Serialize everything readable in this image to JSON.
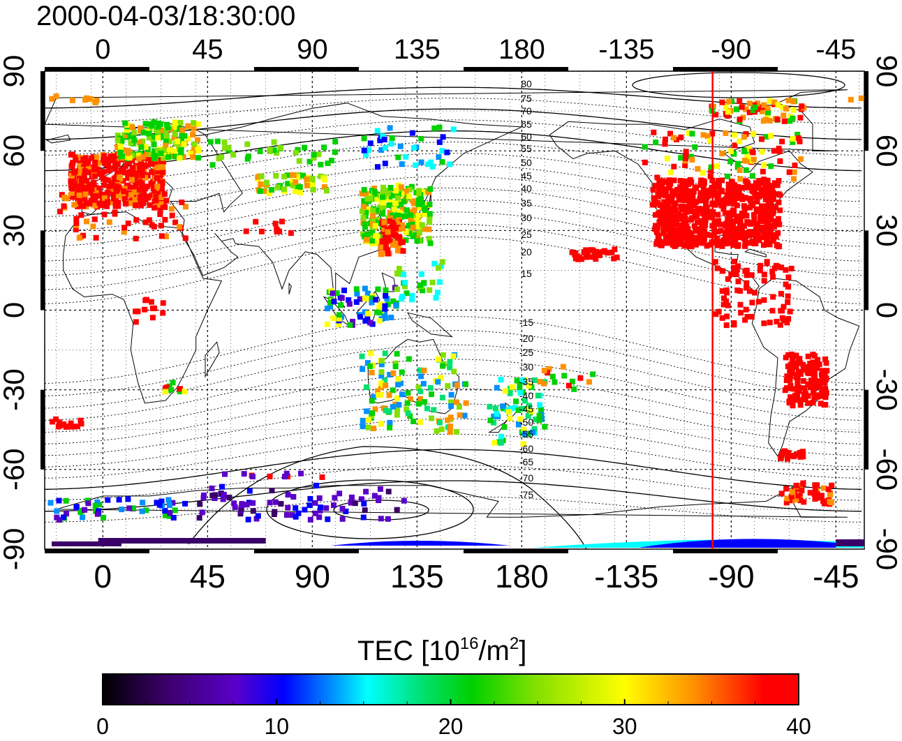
{
  "title": "2000-04-03/18:30:00",
  "map": {
    "x_ticks": [
      "0",
      "45",
      "90",
      "135",
      "180",
      "-135",
      "-90",
      "-45"
    ],
    "y_ticks": [
      "90",
      "60",
      "30",
      "0",
      "-30",
      "-60",
      "-90"
    ],
    "contour_labels_north": [
      "80",
      "75",
      "70",
      "65",
      "60",
      "55",
      "50",
      "45",
      "40",
      "35",
      "30",
      "25",
      "20",
      "15"
    ],
    "contour_labels_south": [
      "-15",
      "-20",
      "-25",
      "-30",
      "-35",
      "-40",
      "-45",
      "-50",
      "-55",
      "-60",
      "-65",
      "-70",
      "-75"
    ],
    "red_line_longitude": -98
  },
  "colorbar": {
    "label_prefix": "TEC  [10",
    "label_exp": "16",
    "label_mid": "/m",
    "label_exp2": "2",
    "label_suffix": "]",
    "ticks": [
      "0",
      "10",
      "20",
      "30",
      "40"
    ],
    "range": [
      0,
      40
    ]
  },
  "colors": {
    "colormap": [
      "#000000",
      "#3a0068",
      "#5a00c8",
      "#0000ff",
      "#0090ff",
      "#00ffff",
      "#00e070",
      "#00d000",
      "#80e000",
      "#ffff00",
      "#ff9000",
      "#ff0000"
    ],
    "red_line": "#ff0000",
    "coast": "#000000"
  }
}
